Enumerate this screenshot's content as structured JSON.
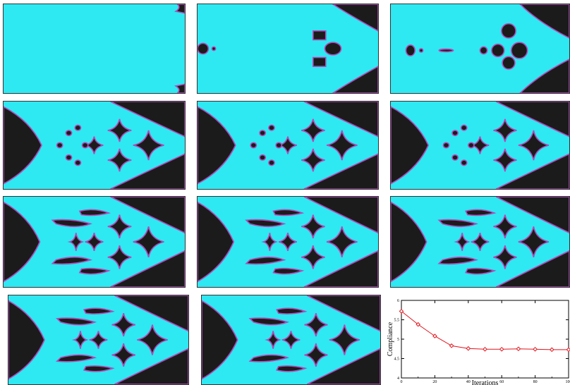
{
  "figure": {
    "colors": {
      "material": "#2ee8f2",
      "void": "#1b1b1b",
      "boundary": "#b04bb8",
      "curve": "#e0141c"
    },
    "panels": [
      {
        "stage": 1,
        "shape": "full-domain-corner-voids"
      },
      {
        "stage": 2,
        "shape": "early-holes-and-arch"
      },
      {
        "stage": 3,
        "shape": "holes-merging"
      },
      {
        "stage": 4,
        "shape": "arrowhead-with-small-holes"
      },
      {
        "stage": 5,
        "shape": "arrowhead-with-small-holes"
      },
      {
        "stage": 6,
        "shape": "arrowhead-refined"
      },
      {
        "stage": 7,
        "shape": "truss-forming"
      },
      {
        "stage": 8,
        "shape": "truss-forming"
      },
      {
        "stage": 9,
        "shape": "truss-refined"
      },
      {
        "stage": 10,
        "shape": "truss-converged"
      },
      {
        "stage": 11,
        "shape": "truss-converged"
      }
    ]
  },
  "chart_data": {
    "type": "line",
    "xlabel": "Iterations",
    "ylabel": "Compliance",
    "xlim": [
      0,
      100
    ],
    "ylim": [
      4,
      6
    ],
    "x_ticks": [
      "0",
      "20",
      "40",
      "60",
      "80",
      "100"
    ],
    "y_ticks": [
      "4",
      "4.5",
      "5",
      "5.5",
      "6"
    ],
    "x": [
      0,
      10,
      20,
      30,
      40,
      50,
      60,
      70,
      80,
      90,
      100
    ],
    "values": [
      5.72,
      5.38,
      5.08,
      4.83,
      4.76,
      4.74,
      4.74,
      4.75,
      4.74,
      4.73,
      4.73
    ],
    "marker": "diamond",
    "grid": false
  }
}
